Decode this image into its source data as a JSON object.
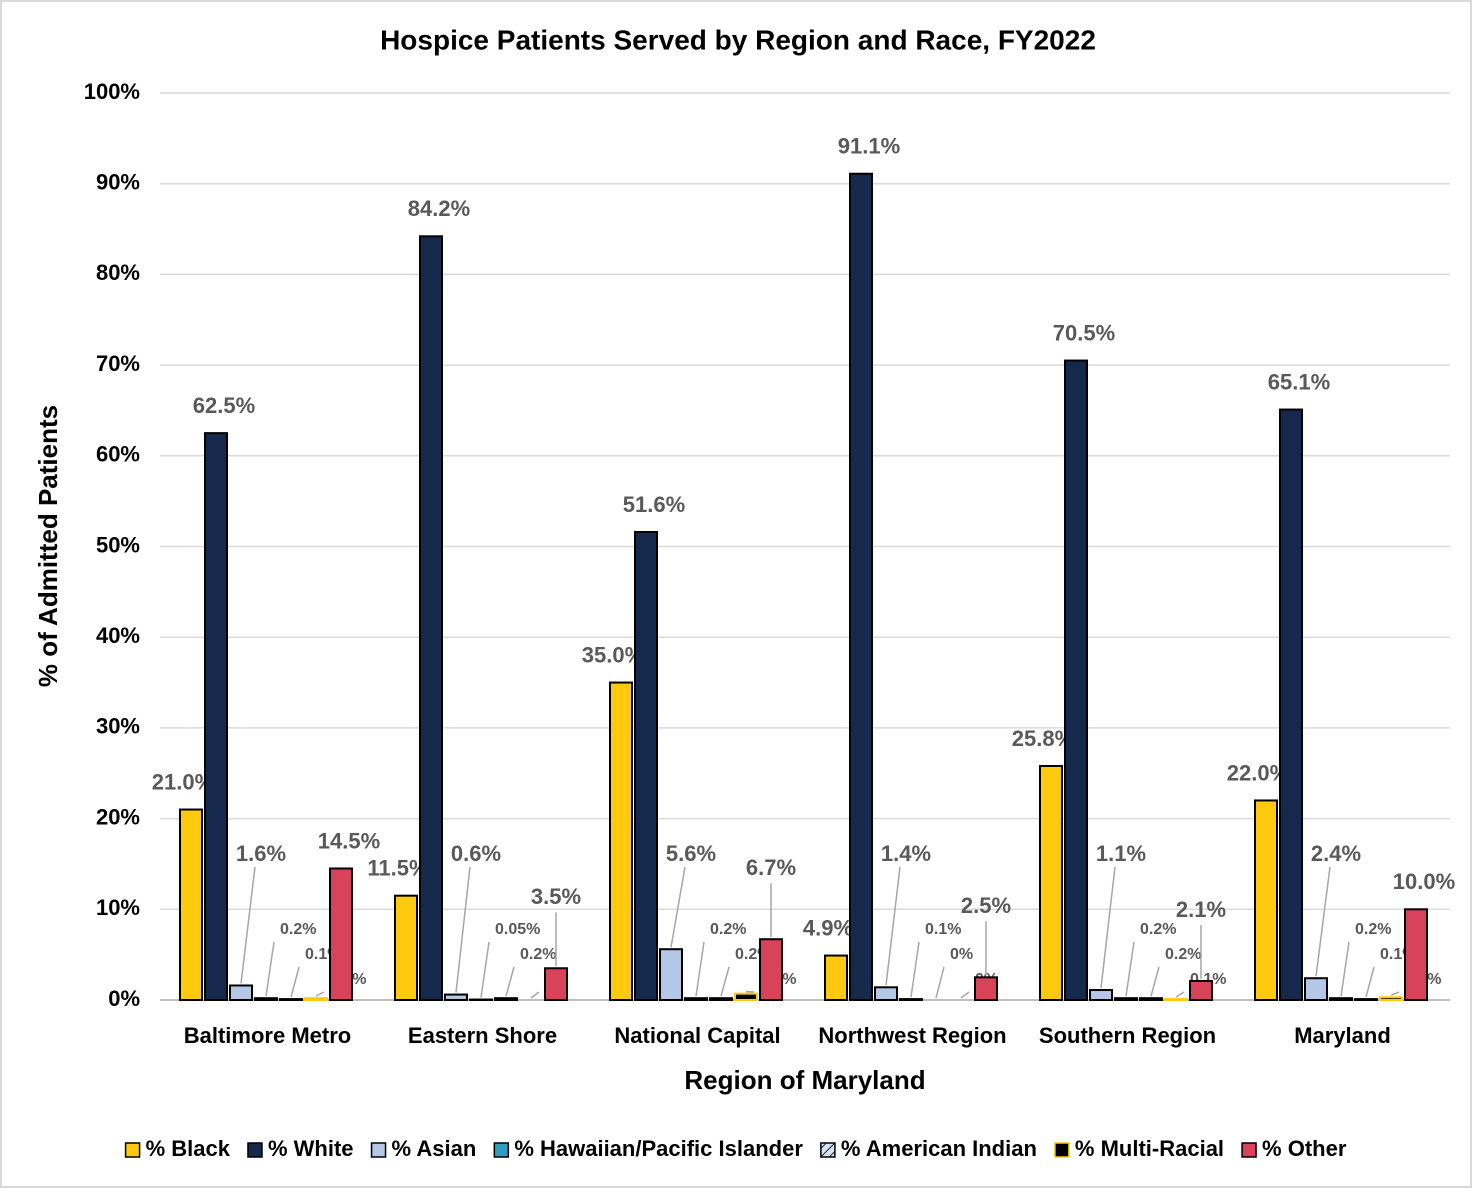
{
  "chart_data": {
    "type": "bar",
    "title": "Hospice Patients Served by Region and Race, FY2022",
    "xlabel": "Region of Maryland",
    "ylabel": "% of Admitted Patients",
    "categories": [
      "Baltimore Metro",
      "Eastern Shore",
      "National Capital",
      "Northwest Region",
      "Southern Region",
      "Maryland"
    ],
    "series": [
      {
        "name": "% Black",
        "color": "#ffc90e",
        "values": [
          21.0,
          11.5,
          35.0,
          4.9,
          25.8,
          22.0
        ],
        "value_labels": [
          "21.0%",
          "11.5%",
          "35.0%",
          "4.9%",
          "25.8%",
          "22.0%"
        ]
      },
      {
        "name": "% White",
        "color": "#14294b",
        "values": [
          62.5,
          84.2,
          51.6,
          91.1,
          70.5,
          65.1
        ],
        "value_labels": [
          "62.5%",
          "84.2%",
          "51.6%",
          "91.1%",
          "70.5%",
          "65.1%"
        ]
      },
      {
        "name": "% Asian",
        "color": "#b4c7e7",
        "values": [
          1.6,
          0.6,
          5.6,
          1.4,
          1.1,
          2.4
        ],
        "value_labels": [
          "1.6%",
          "0.6%",
          "5.6%",
          "1.4%",
          "1.1%",
          "2.4%"
        ]
      },
      {
        "name": "% Hawaiian/Pacific Islander",
        "color": "#2e9ec0",
        "values": [
          0.2,
          0.05,
          0.2,
          0.1,
          0.2,
          0.2
        ],
        "value_labels": [
          "0.2%",
          "0.05%",
          "0.2%",
          "0.1%",
          "0.2%",
          "0.2%"
        ]
      },
      {
        "name": "% American Indian",
        "color": "#dae3f3",
        "hatch": true,
        "values": [
          0.1,
          0.2,
          0.2,
          0,
          0.2,
          0.1
        ],
        "value_labels": [
          "0.1%",
          "0.2%",
          "0.2%",
          "0%",
          "0.2%",
          "0.1%"
        ]
      },
      {
        "name": "% Multi-Racial",
        "color": "#000000",
        "edgecolor": "#ffc90e",
        "values": [
          0.2,
          0,
          0.7,
          0,
          0.1,
          0.3
        ],
        "value_labels": [
          "0.2%",
          "0%",
          "0.7%",
          "0%",
          "0.1%",
          "0.3%"
        ]
      },
      {
        "name": "% Other",
        "color": "#d9435a",
        "values": [
          14.5,
          3.5,
          6.7,
          2.5,
          2.1,
          10.0
        ],
        "value_labels": [
          "14.5%",
          "3.5%",
          "6.7%",
          "2.5%",
          "2.1%",
          "10.0%"
        ]
      }
    ],
    "ylim": [
      0,
      100
    ],
    "yticks": [
      {
        "value": 0,
        "label": "0%"
      },
      {
        "value": 10,
        "label": "10%"
      },
      {
        "value": 20,
        "label": "20%"
      },
      {
        "value": 30,
        "label": "30%"
      },
      {
        "value": 40,
        "label": "40%"
      },
      {
        "value": 50,
        "label": "50%"
      },
      {
        "value": 60,
        "label": "60%"
      },
      {
        "value": 70,
        "label": "70%"
      },
      {
        "value": 80,
        "label": "80%"
      },
      {
        "value": 90,
        "label": "90%"
      },
      {
        "value": 100,
        "label": "100%"
      }
    ],
    "grid": true,
    "legend": "bottom"
  }
}
